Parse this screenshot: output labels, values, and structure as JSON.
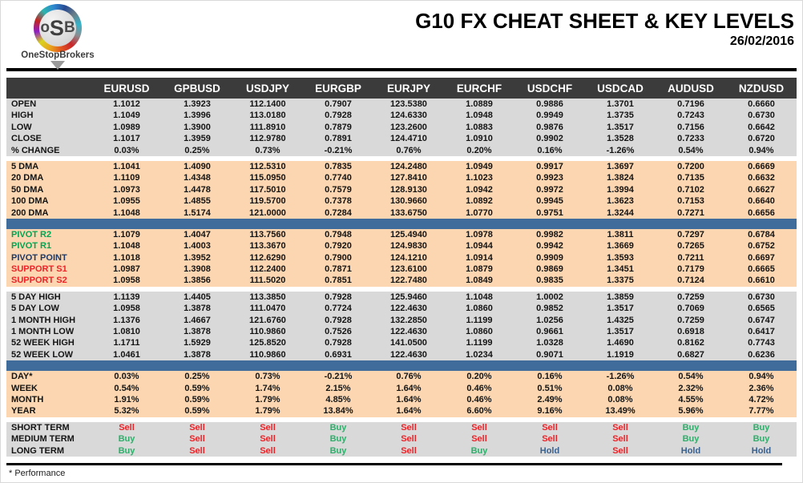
{
  "header": {
    "title": "G10 FX CHEAT SHEET & KEY LEVELS",
    "date": "26/02/2016"
  },
  "logo": {
    "monogram_pre": "o",
    "monogram_mid": "S",
    "monogram_post": "B",
    "name": "OneStopBrokers"
  },
  "footer": {
    "note": "* Performance"
  },
  "colors": {
    "header_bg": "#3B3B3B",
    "gray_band": "#D9D9D9",
    "peach_band": "#FBD6B0",
    "accent_bar": "#3F6C9B",
    "resistance": "#00A553",
    "pivot": "#1F3864",
    "support": "#EE2227",
    "buy": "#2FAE6B",
    "sell": "#EE2227",
    "hold": "#39618F"
  },
  "table": {
    "pairs": [
      "EURUSD",
      "GPBUSD",
      "USDJPY",
      "EURGBP",
      "EURJPY",
      "EURCHF",
      "USDCHF",
      "USDCAD",
      "AUDUSD",
      "NZDUSD"
    ],
    "sections": [
      {
        "name": "daily-ohlc",
        "theme": "gray",
        "divider_after": "gap",
        "rows": [
          {
            "label": "OPEN",
            "values": [
              "1.1012",
              "1.3923",
              "112.1400",
              "0.7907",
              "123.5380",
              "1.0889",
              "0.9886",
              "1.3701",
              "0.7196",
              "0.6660"
            ]
          },
          {
            "label": "HIGH",
            "values": [
              "1.1049",
              "1.3996",
              "113.0180",
              "0.7928",
              "124.6330",
              "1.0948",
              "0.9949",
              "1.3735",
              "0.7243",
              "0.6730"
            ]
          },
          {
            "label": "LOW",
            "values": [
              "1.0989",
              "1.3900",
              "111.8910",
              "0.7879",
              "123.2600",
              "1.0883",
              "0.9876",
              "1.3517",
              "0.7156",
              "0.6642"
            ]
          },
          {
            "label": "CLOSE",
            "values": [
              "1.1017",
              "1.3959",
              "112.9780",
              "0.7891",
              "124.4710",
              "1.0910",
              "0.9902",
              "1.3528",
              "0.7233",
              "0.6720"
            ]
          },
          {
            "label": "% CHANGE",
            "values": [
              "0.03%",
              "0.25%",
              "0.73%",
              "-0.21%",
              "0.76%",
              "0.20%",
              "0.16%",
              "-1.26%",
              "0.54%",
              "0.94%"
            ]
          }
        ]
      },
      {
        "name": "moving-averages",
        "theme": "peach",
        "divider_after": "bar",
        "rows": [
          {
            "label": "5 DMA",
            "values": [
              "1.1041",
              "1.4090",
              "112.5310",
              "0.7835",
              "124.2480",
              "1.0949",
              "0.9917",
              "1.3697",
              "0.7200",
              "0.6669"
            ]
          },
          {
            "label": "20 DMA",
            "values": [
              "1.1109",
              "1.4348",
              "115.0950",
              "0.7740",
              "127.8410",
              "1.1023",
              "0.9923",
              "1.3824",
              "0.7135",
              "0.6632"
            ]
          },
          {
            "label": "50 DMA",
            "values": [
              "1.0973",
              "1.4478",
              "117.5010",
              "0.7579",
              "128.9130",
              "1.0942",
              "0.9972",
              "1.3994",
              "0.7102",
              "0.6627"
            ]
          },
          {
            "label": "100 DMA",
            "values": [
              "1.0955",
              "1.4855",
              "119.5700",
              "0.7378",
              "130.9660",
              "1.0892",
              "0.9945",
              "1.3623",
              "0.7153",
              "0.6640"
            ]
          },
          {
            "label": "200 DMA",
            "values": [
              "1.1048",
              "1.5174",
              "121.0000",
              "0.7284",
              "133.6750",
              "1.0770",
              "0.9751",
              "1.3244",
              "0.7271",
              "0.6656"
            ]
          }
        ]
      },
      {
        "name": "pivots",
        "theme": "peach",
        "divider_after": "gap",
        "rows": [
          {
            "label": "PIVOT R2",
            "tone": "resistance",
            "values": [
              "1.1079",
              "1.4047",
              "113.7560",
              "0.7948",
              "125.4940",
              "1.0978",
              "0.9982",
              "1.3811",
              "0.7297",
              "0.6784"
            ]
          },
          {
            "label": "PIVOT R1",
            "tone": "resistance",
            "values": [
              "1.1048",
              "1.4003",
              "113.3670",
              "0.7920",
              "124.9830",
              "1.0944",
              "0.9942",
              "1.3669",
              "0.7265",
              "0.6752"
            ]
          },
          {
            "label": "PIVOT POINT",
            "tone": "pivot",
            "values": [
              "1.1018",
              "1.3952",
              "112.6290",
              "0.7900",
              "124.1210",
              "1.0914",
              "0.9909",
              "1.3593",
              "0.7211",
              "0.6697"
            ]
          },
          {
            "label": "SUPPORT S1",
            "tone": "support",
            "values": [
              "1.0987",
              "1.3908",
              "112.2400",
              "0.7871",
              "123.6100",
              "1.0879",
              "0.9869",
              "1.3451",
              "0.7179",
              "0.6665"
            ]
          },
          {
            "label": "SUPPORT S2",
            "tone": "support",
            "values": [
              "1.0958",
              "1.3856",
              "111.5020",
              "0.7851",
              "122.7480",
              "1.0849",
              "0.9835",
              "1.3375",
              "0.7124",
              "0.6610"
            ]
          }
        ]
      },
      {
        "name": "ranges",
        "theme": "gray",
        "divider_after": "bar",
        "rows": [
          {
            "label": "5 DAY HIGH",
            "values": [
              "1.1139",
              "1.4405",
              "113.3850",
              "0.7928",
              "125.9460",
              "1.1048",
              "1.0002",
              "1.3859",
              "0.7259",
              "0.6730"
            ]
          },
          {
            "label": "5 DAY LOW",
            "values": [
              "1.0958",
              "1.3878",
              "111.0470",
              "0.7724",
              "122.4630",
              "1.0860",
              "0.9852",
              "1.3517",
              "0.7069",
              "0.6565"
            ]
          },
          {
            "label": "1 MONTH HIGH",
            "values": [
              "1.1376",
              "1.4667",
              "121.6760",
              "0.7928",
              "132.2850",
              "1.1199",
              "1.0256",
              "1.4325",
              "0.7259",
              "0.6747"
            ]
          },
          {
            "label": "1 MONTH LOW",
            "values": [
              "1.0810",
              "1.3878",
              "110.9860",
              "0.7526",
              "122.4630",
              "1.0860",
              "0.9661",
              "1.3517",
              "0.6918",
              "0.6417"
            ]
          },
          {
            "label": "52 WEEK HIGH",
            "values": [
              "1.1711",
              "1.5929",
              "125.8520",
              "0.7928",
              "141.0500",
              "1.1199",
              "1.0328",
              "1.4690",
              "0.8162",
              "0.7743"
            ]
          },
          {
            "label": "52 WEEK LOW",
            "values": [
              "1.0461",
              "1.3878",
              "110.9860",
              "0.6931",
              "122.4630",
              "1.0234",
              "0.9071",
              "1.1919",
              "0.6827",
              "0.6236"
            ]
          }
        ]
      },
      {
        "name": "performance",
        "theme": "peach",
        "divider_after": "gap",
        "rows": [
          {
            "label": "DAY*",
            "values": [
              "0.03%",
              "0.25%",
              "0.73%",
              "-0.21%",
              "0.76%",
              "0.20%",
              "0.16%",
              "-1.26%",
              "0.54%",
              "0.94%"
            ]
          },
          {
            "label": "WEEK",
            "values": [
              "0.54%",
              "0.59%",
              "1.74%",
              "2.15%",
              "1.64%",
              "0.46%",
              "0.51%",
              "0.08%",
              "2.32%",
              "2.36%"
            ]
          },
          {
            "label": "MONTH",
            "values": [
              "1.91%",
              "0.59%",
              "1.79%",
              "4.85%",
              "1.64%",
              "0.46%",
              "2.49%",
              "0.08%",
              "4.55%",
              "4.72%"
            ]
          },
          {
            "label": "YEAR",
            "values": [
              "5.32%",
              "0.59%",
              "1.79%",
              "13.84%",
              "1.64%",
              "6.60%",
              "9.16%",
              "13.49%",
              "5.96%",
              "7.77%"
            ]
          }
        ]
      },
      {
        "name": "signals",
        "theme": "gray",
        "signal": true,
        "divider_after": "none",
        "rows": [
          {
            "label": "SHORT TERM",
            "values": [
              "Sell",
              "Sell",
              "Sell",
              "Buy",
              "Sell",
              "Sell",
              "Sell",
              "Sell",
              "Buy",
              "Buy"
            ]
          },
          {
            "label": "MEDIUM TERM",
            "values": [
              "Buy",
              "Sell",
              "Sell",
              "Buy",
              "Sell",
              "Sell",
              "Sell",
              "Sell",
              "Buy",
              "Buy"
            ]
          },
          {
            "label": "LONG TERM",
            "values": [
              "Buy",
              "Sell",
              "Sell",
              "Buy",
              "Sell",
              "Buy",
              "Hold",
              "Sell",
              "Hold",
              "Hold"
            ]
          }
        ]
      }
    ]
  }
}
